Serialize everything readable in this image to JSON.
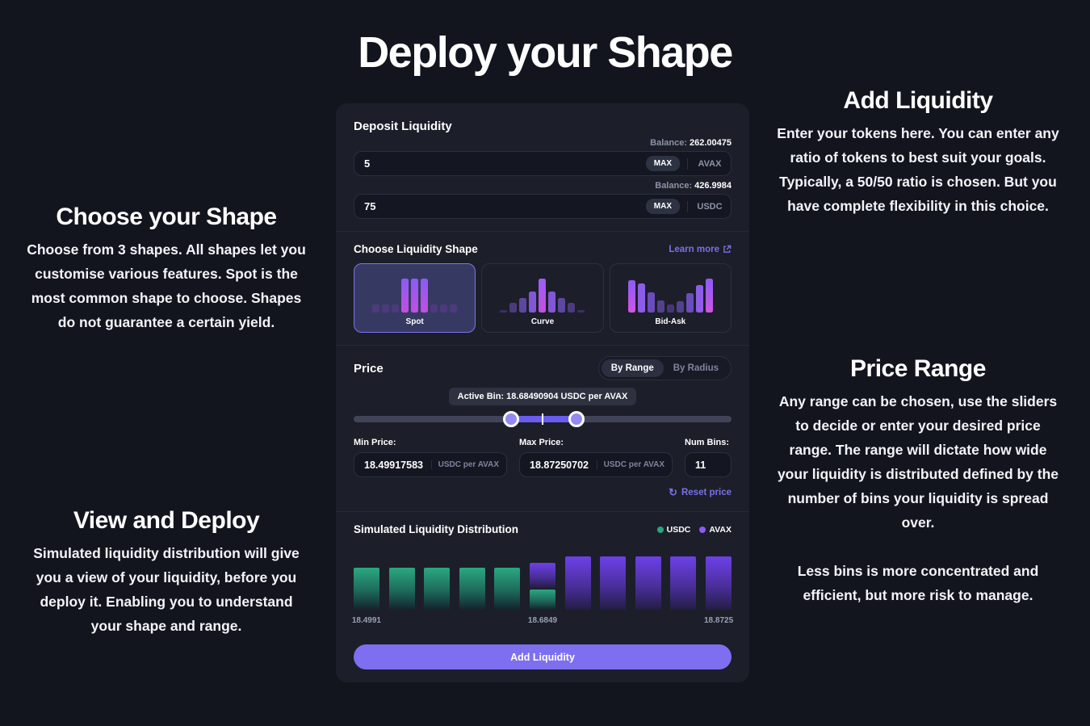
{
  "page_title": "Deploy your Shape",
  "info": {
    "choose_shape": {
      "title": "Choose your Shape",
      "body": "Choose from 3 shapes. All shapes let you customise various features. Spot is the most common shape to choose. Shapes do not guarantee a certain yield."
    },
    "view_deploy": {
      "title": "View and Deploy",
      "body": "Simulated liquidity distribution will give you a view of your liquidity, before you deploy it. Enabling you to understand your shape and range."
    },
    "add_liquidity": {
      "title": "Add Liquidity",
      "body": "Enter your tokens here. You can enter any ratio of tokens to best suit your goals. Typically, a 50/50 ratio is chosen. But you have complete flexibility in this choice."
    },
    "price_range": {
      "title": "Price Range",
      "body1": "Any range can be chosen, use the sliders to decide or enter your desired price range. The range will dictate how wide your liquidity is distributed defined by the number of bins your liquidity is spread over.",
      "body2": "Less bins is more concentrated and efficient, but more risk to manage."
    }
  },
  "card": {
    "deposit": {
      "title": "Deposit Liquidity",
      "rows": [
        {
          "balance_label": "Balance:",
          "balance": "262.00475",
          "value": "5",
          "max_label": "MAX",
          "token": "AVAX"
        },
        {
          "balance_label": "Balance:",
          "balance": "426.9984",
          "value": "75",
          "max_label": "MAX",
          "token": "USDC"
        }
      ]
    },
    "shape": {
      "title": "Choose Liquidity Shape",
      "learn_more": "Learn more",
      "options": [
        {
          "label": "Spot",
          "selected": true
        },
        {
          "label": "Curve",
          "selected": false
        },
        {
          "label": "Bid-Ask",
          "selected": false
        }
      ]
    },
    "price": {
      "title": "Price",
      "toggle": {
        "range_label": "By Range",
        "radius_label": "By Radius",
        "selected": "By Range"
      },
      "active_bin": "Active Bin: 18.68490904 USDC per AVAX",
      "slider": {
        "start_pct": 41.7,
        "tick_pct": 50.1,
        "end_pct": 58.9
      },
      "min_label": "Min Price:",
      "min_value": "18.49917583",
      "min_unit": "USDC per AVAX",
      "max_label": "Max Price:",
      "max_value": "18.87250702",
      "max_unit": "USDC per AVAX",
      "bins_label": "Num Bins:",
      "bins_value": "11",
      "reset_label": "Reset price",
      "reset_icon": "↻"
    },
    "distribution": {
      "title": "Simulated Liquidity Distribution",
      "legend": [
        {
          "label": "USDC",
          "color": "#2aa47e"
        },
        {
          "label": "AVAX",
          "color": "#8b5cf6"
        }
      ]
    },
    "submit_label": "Add Liquidity"
  },
  "colors": {
    "accent_purple": "#7d6ff0",
    "link_purple": "#7a70e8",
    "usdc_green": "#2aa47e",
    "avax_purple": "#8b5cf6",
    "background": "#13151e",
    "card_background": "#1c1f29"
  },
  "chart_data": {
    "type": "bar",
    "stacked": true,
    "title": "Simulated Liquidity Distribution",
    "legend": [
      "USDC",
      "AVAX"
    ],
    "legend_position": "top-right",
    "grid": false,
    "unit": "USDC per AVAX",
    "bars": [
      {
        "x": "18.4991",
        "usdc": 52,
        "avax": 0
      },
      {
        "x": "",
        "usdc": 52,
        "avax": 0
      },
      {
        "x": "",
        "usdc": 52,
        "avax": 0
      },
      {
        "x": "",
        "usdc": 52,
        "avax": 0
      },
      {
        "x": "",
        "usdc": 52,
        "avax": 0
      },
      {
        "x": "18.6849",
        "usdc": 25,
        "avax": 31
      },
      {
        "x": "",
        "usdc": 0,
        "avax": 66
      },
      {
        "x": "",
        "usdc": 0,
        "avax": 66
      },
      {
        "x": "",
        "usdc": 0,
        "avax": 66
      },
      {
        "x": "",
        "usdc": 0,
        "avax": 66
      },
      {
        "x": "18.8725",
        "usdc": 0,
        "avax": 66
      }
    ],
    "shapes": {
      "spot": [
        24,
        24,
        24,
        100,
        100,
        100,
        24,
        24,
        24
      ],
      "curve": [
        7,
        28,
        43,
        62,
        100,
        62,
        43,
        28,
        7
      ],
      "bidask": [
        95,
        86,
        60,
        36,
        24,
        33,
        57,
        81,
        100
      ]
    }
  }
}
